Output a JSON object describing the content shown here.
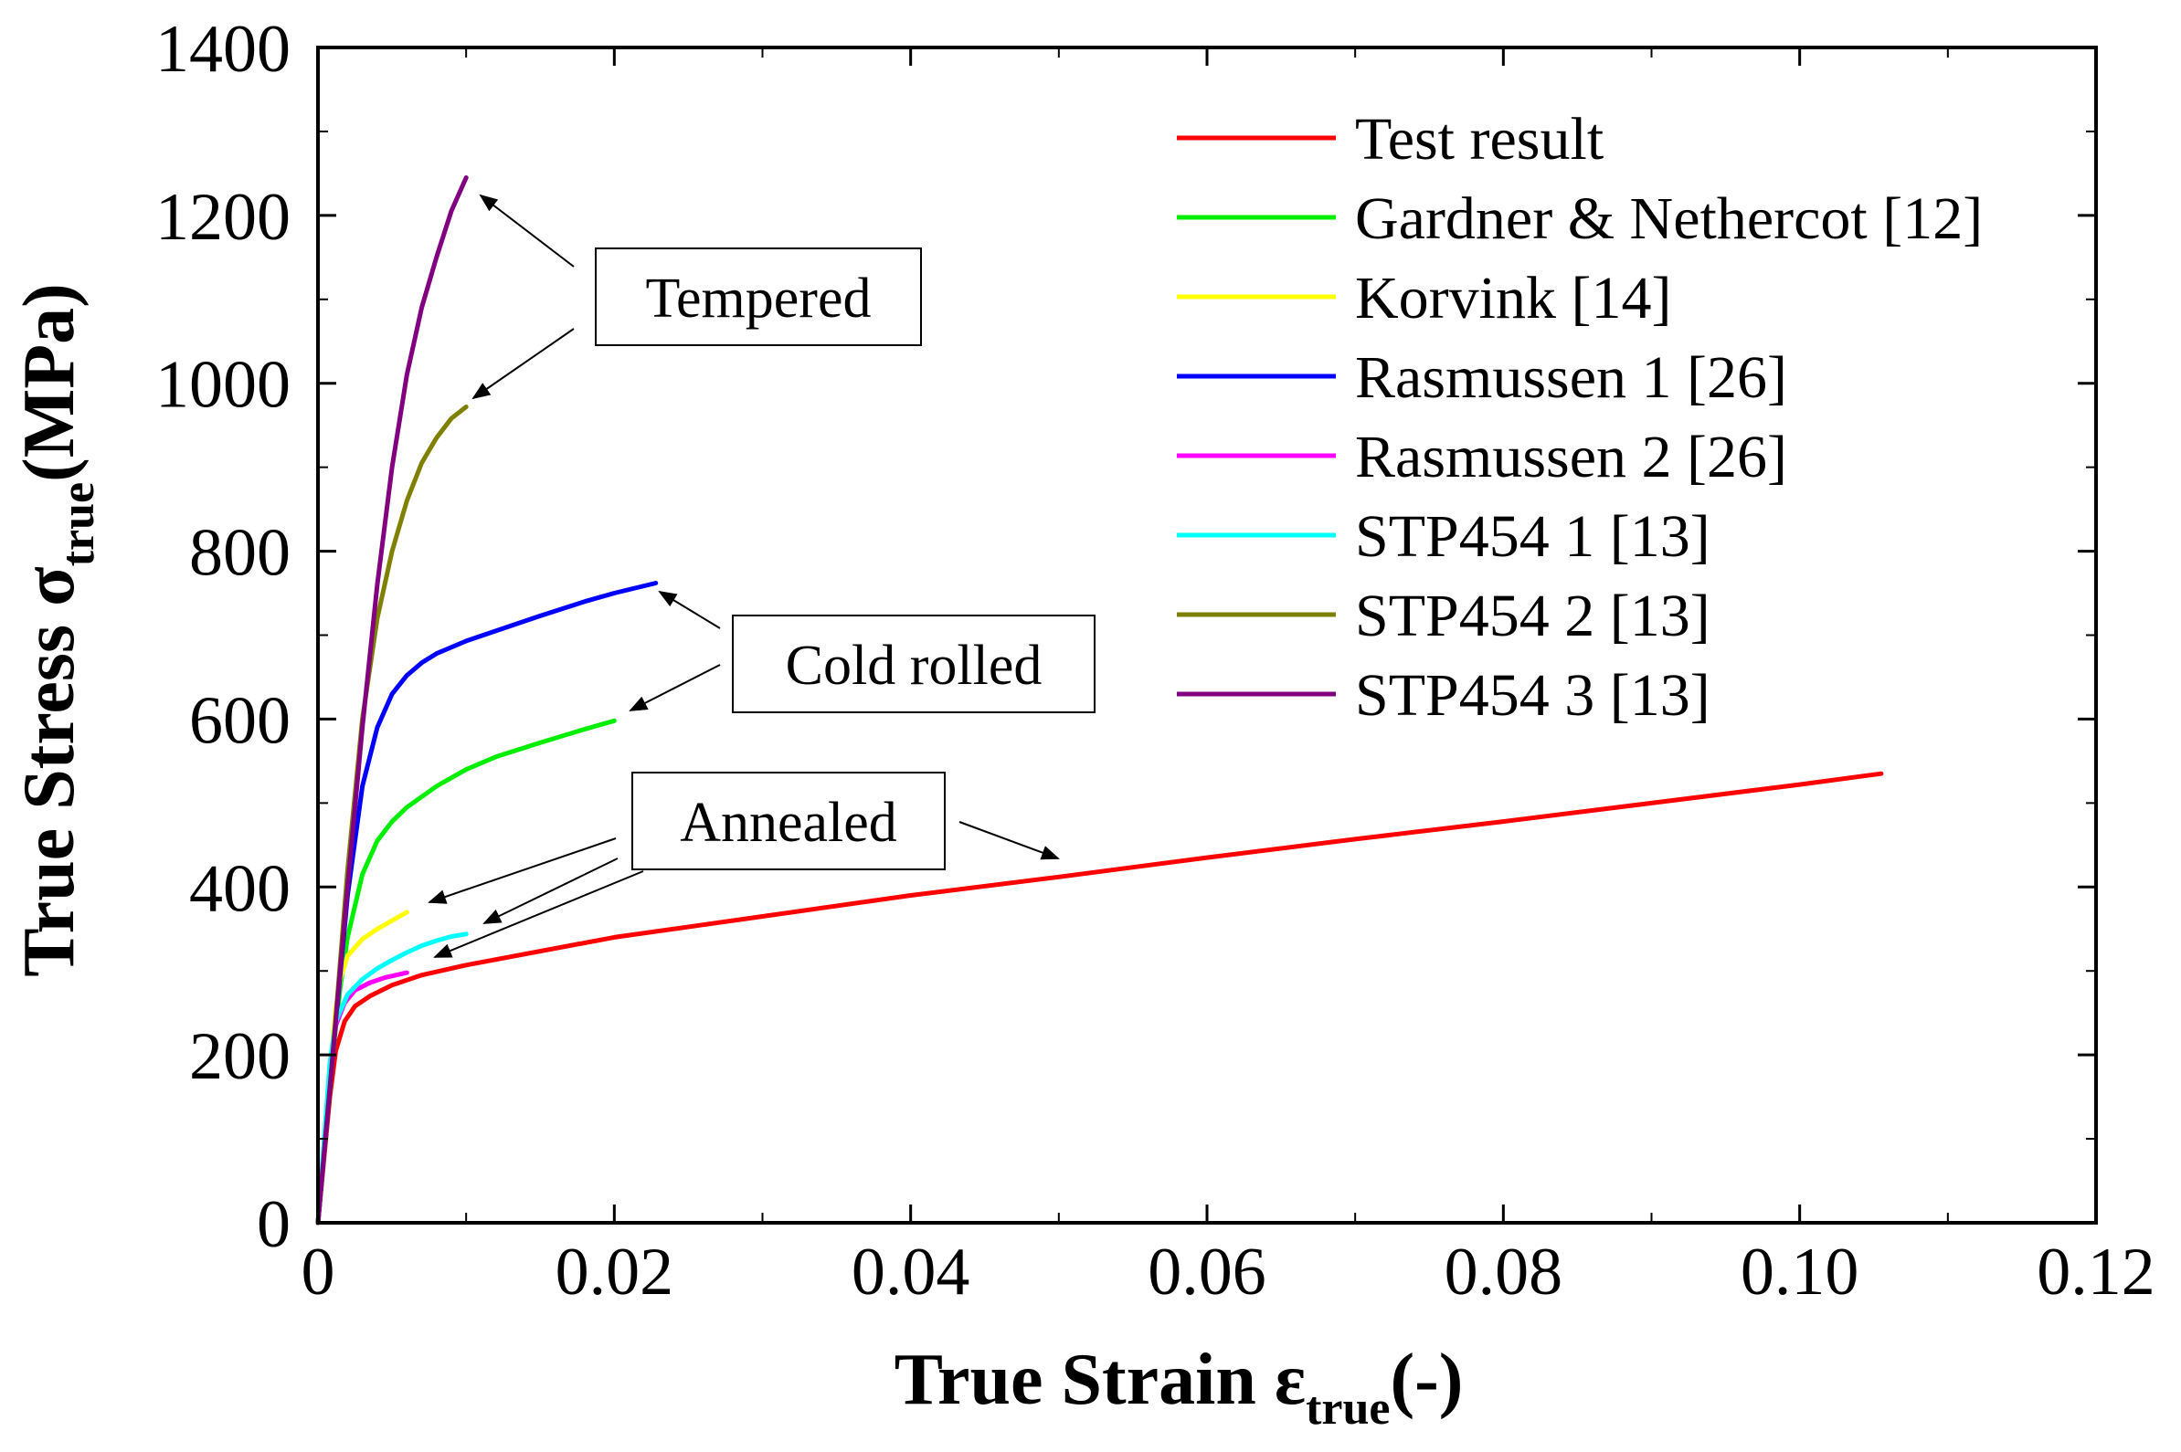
{
  "chart_data": {
    "type": "line",
    "xlabel": {
      "main": "True Strain ε",
      "sub": "true",
      "tail": "(-)"
    },
    "ylabel": {
      "main": "True Stress σ",
      "sub": "true",
      "tail": "(MPa)"
    },
    "xlim": [
      0,
      0.12
    ],
    "ylim": [
      0,
      1400
    ],
    "xticks": [
      0,
      0.02,
      0.04,
      0.06,
      0.08,
      0.1,
      0.12
    ],
    "xtick_labels": [
      "0",
      "0.02",
      "0.04",
      "0.06",
      "0.08",
      "0.10",
      "0.12"
    ],
    "xminor": [
      0.01,
      0.03,
      0.05,
      0.07,
      0.09,
      0.11
    ],
    "yticks": [
      0,
      200,
      400,
      600,
      800,
      1000,
      1200,
      1400
    ],
    "ytick_labels": [
      "0",
      "200",
      "400",
      "600",
      "800",
      "1000",
      "1200",
      "1400"
    ],
    "yminor": [
      100,
      300,
      500,
      700,
      900,
      1100,
      1300
    ],
    "legend_position": "top-right",
    "series": [
      {
        "name": "Test result",
        "color": "#ff0000",
        "x": [
          0,
          0.0008,
          0.0012,
          0.0018,
          0.0025,
          0.0035,
          0.005,
          0.007,
          0.01,
          0.02,
          0.03,
          0.04,
          0.05,
          0.06,
          0.07,
          0.08,
          0.09,
          0.1,
          0.1055
        ],
        "y": [
          0,
          150,
          205,
          240,
          258,
          270,
          283,
          295,
          307,
          340,
          365,
          390,
          412,
          435,
          457,
          478,
          500,
          522,
          535
        ]
      },
      {
        "name": "Gardner & Nethercot [12]",
        "color": "#00ee00",
        "x": [
          0,
          0.001,
          0.0015,
          0.002,
          0.003,
          0.004,
          0.005,
          0.006,
          0.008,
          0.01,
          0.012,
          0.015,
          0.018,
          0.02
        ],
        "y": [
          0,
          200,
          280,
          340,
          415,
          455,
          478,
          495,
          520,
          540,
          555,
          572,
          588,
          598
        ]
      },
      {
        "name": "Korvink [14]",
        "color": "#ffff00",
        "x": [
          0,
          0.0008,
          0.0012,
          0.0015,
          0.002,
          0.003,
          0.004,
          0.005,
          0.006
        ],
        "y": [
          0,
          180,
          255,
          290,
          318,
          338,
          350,
          360,
          370
        ]
      },
      {
        "name": "Rasmussen 1 [26]",
        "color": "#0000ff",
        "x": [
          0,
          0.001,
          0.002,
          0.003,
          0.004,
          0.005,
          0.006,
          0.007,
          0.008,
          0.01,
          0.012,
          0.015,
          0.018,
          0.02,
          0.0228
        ],
        "y": [
          0,
          200,
          390,
          520,
          590,
          630,
          652,
          667,
          678,
          693,
          705,
          723,
          740,
          750,
          762
        ]
      },
      {
        "name": "Rasmussen 2 [26]",
        "color": "#ff00ff",
        "x": [
          0,
          0.0008,
          0.0012,
          0.0018,
          0.0025,
          0.0035,
          0.0045,
          0.006
        ],
        "y": [
          0,
          180,
          235,
          262,
          277,
          286,
          292,
          298
        ]
      },
      {
        "name": "STP454 1 [13]",
        "color": "#00ffff",
        "x": [
          0,
          0.0008,
          0.0012,
          0.002,
          0.003,
          0.004,
          0.005,
          0.006,
          0.007,
          0.008,
          0.009,
          0.01
        ],
        "y": [
          0,
          190,
          240,
          272,
          290,
          303,
          313,
          322,
          330,
          336,
          341,
          344
        ]
      },
      {
        "name": "STP454 2 [13]",
        "color": "#808000",
        "x": [
          0,
          0.001,
          0.002,
          0.003,
          0.004,
          0.005,
          0.006,
          0.007,
          0.008,
          0.009,
          0.01
        ],
        "y": [
          0,
          200,
          420,
          600,
          720,
          800,
          860,
          905,
          935,
          958,
          972
        ]
      },
      {
        "name": "STP454 3 [13]",
        "color": "#800080",
        "x": [
          0,
          0.001,
          0.002,
          0.003,
          0.004,
          0.005,
          0.006,
          0.007,
          0.008,
          0.009,
          0.01
        ],
        "y": [
          0,
          200,
          400,
          590,
          760,
          900,
          1010,
          1090,
          1150,
          1205,
          1245
        ]
      }
    ],
    "annotations": [
      {
        "label": "Tempered"
      },
      {
        "label": "Cold rolled"
      },
      {
        "label": "Annealed"
      }
    ]
  }
}
